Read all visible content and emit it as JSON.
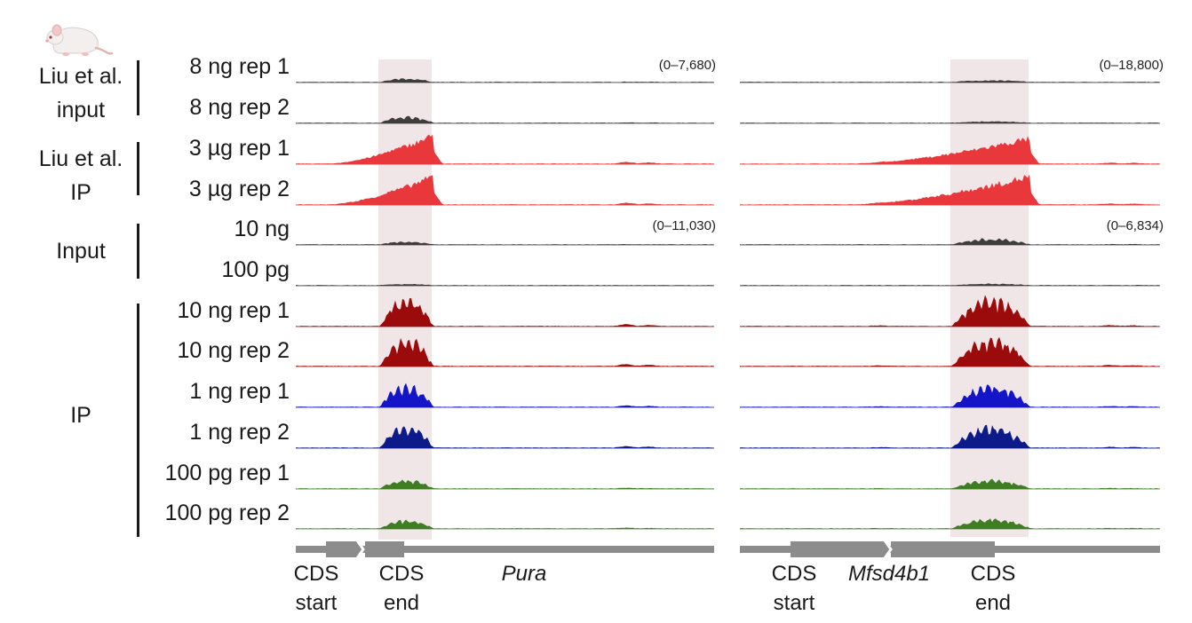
{
  "chart_data": {
    "type": "genome-browser-tracks",
    "groups": [
      {
        "label_lines": [
          "Liu et al.",
          "input"
        ],
        "tracks": [
          0,
          1
        ]
      },
      {
        "label_lines": [
          "Liu et al.",
          "IP"
        ],
        "tracks": [
          2,
          3
        ]
      },
      {
        "label_lines": [
          "Input"
        ],
        "tracks": [
          4,
          5
        ]
      },
      {
        "label_lines": [
          "IP"
        ],
        "tracks": [
          6,
          7,
          8,
          9,
          10,
          11
        ]
      }
    ],
    "tracks": [
      {
        "label": "8 ng rep 1",
        "color": "#3d3d3d",
        "amp_left": 0.12,
        "amp_right": 0.06
      },
      {
        "label": "8 ng rep 2",
        "color": "#3d3d3d",
        "amp_left": 0.22,
        "amp_right": 0.05
      },
      {
        "label": "3 µg rep 1",
        "color": "#e8383b",
        "amp_left": 0.95,
        "amp_right": 0.85
      },
      {
        "label": "3 µg rep 2",
        "color": "#e8383b",
        "amp_left": 0.95,
        "amp_right": 0.95
      },
      {
        "label": "10 ng",
        "color": "#3d3d3d",
        "amp_left": 0.1,
        "amp_right": 0.2
      },
      {
        "label": "100 pg",
        "color": "#3d3d3d",
        "amp_left": 0.04,
        "amp_right": 0.05
      },
      {
        "label": "10 ng rep 1",
        "color": "#9b0b0b",
        "amp_left": 0.95,
        "amp_right": 0.95
      },
      {
        "label": "10 ng rep 2",
        "color": "#9b0b0b",
        "amp_left": 0.95,
        "amp_right": 0.95
      },
      {
        "label": "1 ng rep 1",
        "color": "#1515c8",
        "amp_left": 0.75,
        "amp_right": 0.75
      },
      {
        "label": "1 ng rep 2",
        "color": "#0d1a8a",
        "amp_left": 0.75,
        "amp_right": 0.75
      },
      {
        "label": "100 pg rep 1",
        "color": "#3f7d22",
        "amp_left": 0.3,
        "amp_right": 0.3
      },
      {
        "label": "100 pg rep 2",
        "color": "#3f7d22",
        "amp_left": 0.3,
        "amp_right": 0.35
      }
    ],
    "panels": [
      {
        "gene": "Pura",
        "ranges": [
          "(0–7,680)",
          "(0–11,030)"
        ],
        "gene_labels": [
          [
            "CDS",
            "start"
          ],
          [
            "CDS",
            "end"
          ]
        ]
      },
      {
        "gene": "Mfsd4b1",
        "ranges": [
          "(0–18,800)",
          "(0–6,834)"
        ],
        "gene_labels": [
          [
            "CDS",
            "start"
          ],
          [
            "CDS",
            "end"
          ]
        ]
      }
    ],
    "highlight_color": "#f1e6e7"
  }
}
